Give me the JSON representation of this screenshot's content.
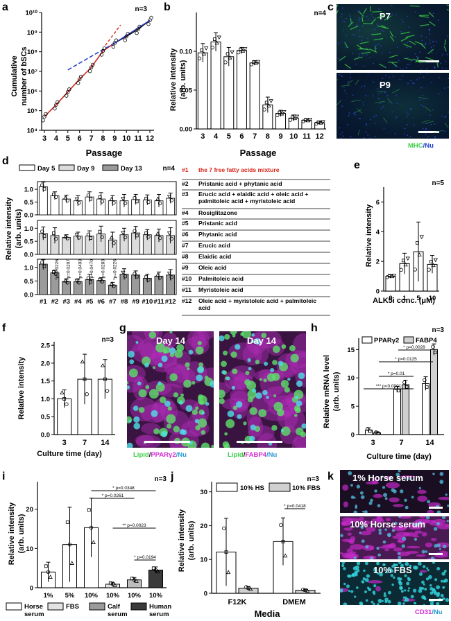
{
  "panel_letters": [
    "a",
    "b",
    "c",
    "d",
    "e",
    "f",
    "g",
    "h",
    "i",
    "j",
    "k"
  ],
  "colors": {
    "red": "#d9261c",
    "blue": "#2a3fd1",
    "magenta": "#d42ad4",
    "cyan": "#33d6e0",
    "green": "#5de06a",
    "gray_light": "#e3e3e3",
    "gray_mid": "#bdbdbd",
    "gray_dark": "#8f8f8f",
    "gray_black": "#3a3a3a"
  },
  "a": {
    "n": "n=3",
    "ylabel": [
      "Cumulative",
      "number of  bSCs"
    ],
    "xlabel": "Passage",
    "xticks": [
      "3",
      "4",
      "5",
      "6",
      "7",
      "8",
      "9",
      "10",
      "11",
      "12"
    ],
    "yticks": [
      "10⁴",
      "10⁵",
      "10⁶",
      "10⁷",
      "10⁸",
      "10⁹",
      "10¹⁰"
    ]
  },
  "b": {
    "n": "n=4",
    "ylabel": [
      "Relative intensity",
      "(arb. units)"
    ],
    "xlabel": "Passage",
    "xticks": [
      "3",
      "4",
      "5",
      "6",
      "7",
      "8",
      "9",
      "10",
      "11",
      "12"
    ],
    "yticks": [
      "0.00",
      "0.05",
      "0.10"
    ]
  },
  "c": {
    "p7": "P7",
    "p9": "P9",
    "legend_a": "MHC",
    "legend_b": "/Nu"
  },
  "d": {
    "legend": [
      "Day 5",
      "Day 9",
      "Day 13"
    ],
    "n": "n=4",
    "ylabel": [
      "Relative intensity",
      "(arb. units)"
    ],
    "yticks": [
      "0.0",
      "0.5",
      "1.0"
    ],
    "xticks": [
      "#1",
      "#2",
      "#3",
      "#4",
      "#5",
      "#6",
      "#7",
      "#8",
      "#9",
      "#10",
      "#11",
      "#12"
    ],
    "pvals": [
      "p=0.0226",
      "p=0.0207",
      "p=0.0403",
      "p=0.0470",
      "p=0.0283",
      "p=0.0226"
    ],
    "compounds": [
      {
        "num": "#1",
        "name": "the 7 free fatty acids mixture"
      },
      {
        "num": "#2",
        "name": "Pristanic acid + phytanic acid"
      },
      {
        "num": "#3",
        "name": "Erucic acid + elaidic acid + oleic acid + palmitoleic acid + myristoleic acid"
      },
      {
        "num": "#4",
        "name": "Rosiglitazone"
      },
      {
        "num": "#5",
        "name": "Pristanic acid"
      },
      {
        "num": "#6",
        "name": "Phytanic acid"
      },
      {
        "num": "#7",
        "name": "Erucic acid"
      },
      {
        "num": "#8",
        "name": "Elaidic acid"
      },
      {
        "num": "#9",
        "name": "Oleic acid"
      },
      {
        "num": "#10",
        "name": "Palmitoleic acid"
      },
      {
        "num": "#11",
        "name": "Myristoleic acid"
      },
      {
        "num": "#12",
        "name": "Oleic acid + myristoleic acid + palmitoleic acid"
      }
    ]
  },
  "e": {
    "n": "n=5",
    "ylabel": "Relative intensity",
    "xlabel": "ALK5i conc. (μM)",
    "xticks": [
      "0",
      "1",
      "5",
      "10"
    ],
    "yticks": [
      "0",
      "2",
      "4",
      "6"
    ]
  },
  "f": {
    "n": "n=3",
    "ylabel": "Relative intensity",
    "xlabel": "Culture time (day)",
    "xticks": [
      "3",
      "7",
      "14"
    ],
    "yticks": [
      "0.0",
      "0.5",
      "1.0",
      "1.5",
      "2.0",
      "2.5"
    ]
  },
  "g": {
    "day_left": "Day 14",
    "day_right": "Day 14",
    "cap_left": [
      "Lipid",
      "/",
      "PPARγ2",
      "/Nu"
    ],
    "cap_right": [
      "Lipid",
      "/",
      "FABP4",
      "/Nu"
    ]
  },
  "h": {
    "n": "n=3",
    "legend": [
      "PPARγ2",
      "FABP4"
    ],
    "ylabel": [
      "Relative mRNA level",
      "(arb. units)"
    ],
    "xlabel": "Culture time (day)",
    "xticks": [
      "3",
      "7",
      "14"
    ],
    "yticks": [
      "0",
      "5",
      "10",
      "15"
    ],
    "pvals": [
      "p=0.0028",
      "p=0.0125",
      "p=0.01",
      "p<0.0001"
    ]
  },
  "i": {
    "n": "n=3",
    "ylabel": [
      "Relative intensity",
      "(arb. units)"
    ],
    "xticks": [
      "1%",
      "5%",
      "10%",
      "10%",
      "10%",
      "10%"
    ],
    "yticks": [
      "0",
      "10",
      "20"
    ],
    "pvals": [
      "p=0.0348",
      "p=0.0261",
      "p=0.0023",
      "p=0.0194"
    ],
    "legend": [
      "Horse serum",
      "FBS",
      "Calf serum",
      "Human serum"
    ]
  },
  "j": {
    "n": "n=3",
    "legend": [
      "10% HS",
      "10% FBS"
    ],
    "ylabel": [
      "Relative intensity",
      "(arb. units)"
    ],
    "xlabel": "Media",
    "xticks": [
      "F12K",
      "DMEM"
    ],
    "yticks": [
      "0",
      "10",
      "20",
      "30"
    ],
    "pval": "p=0.0418"
  },
  "k": {
    "labels": [
      "1% Horse serum",
      "10% Horse serum",
      "10% FBS"
    ],
    "cap_a": "CD31",
    "cap_b": "/Nu"
  },
  "chart_data": [
    {
      "panel": "a",
      "type": "scatter",
      "x": [
        3,
        4,
        5,
        6,
        7,
        8,
        9,
        10,
        11,
        12
      ],
      "y": [
        50000.0,
        200000.0,
        900000.0,
        4000000.0,
        16000000.0,
        110000000.0,
        280000000.0,
        600000000.0,
        1400000000.0,
        4000000000.0
      ],
      "ylim": [
        10000.0,
        10000000000.0
      ],
      "log_y": true
    },
    {
      "panel": "b",
      "type": "bar",
      "categories": [
        "3",
        "4",
        "5",
        "6",
        "7",
        "8",
        "9",
        "10",
        "11",
        "12"
      ],
      "values": [
        0.098,
        0.112,
        0.093,
        0.101,
        0.085,
        0.031,
        0.02,
        0.014,
        0.011,
        0.008
      ],
      "err": [
        0.012,
        0.012,
        0.012,
        0.004,
        0.003,
        0.01,
        0.004,
        0.004,
        0.002,
        0.002
      ],
      "ylim": [
        0,
        0.15
      ]
    },
    {
      "panel": "d",
      "type": "bar",
      "categories": [
        "#1",
        "#2",
        "#3",
        "#4",
        "#5",
        "#6",
        "#7",
        "#8",
        "#9",
        "#10",
        "#11",
        "#12"
      ],
      "series": [
        {
          "name": "Day 5",
          "values": [
            1.1,
            0.75,
            0.62,
            0.55,
            0.7,
            0.62,
            0.55,
            0.55,
            0.6,
            0.58,
            0.55,
            0.65
          ],
          "err": [
            0.2,
            0.15,
            0.15,
            0.2,
            0.2,
            0.25,
            0.2,
            0.25,
            0.2,
            0.2,
            0.25,
            0.2
          ]
        },
        {
          "name": "Day 9",
          "values": [
            0.8,
            0.72,
            0.65,
            0.7,
            0.7,
            0.78,
            0.55,
            0.75,
            0.82,
            0.75,
            0.72,
            0.72
          ],
          "err": [
            0.25,
            0.3,
            0.1,
            0.15,
            0.2,
            0.3,
            0.3,
            0.25,
            0.25,
            0.2,
            0.25,
            0.3
          ]
        },
        {
          "name": "Day 13",
          "values": [
            1.12,
            0.8,
            0.48,
            0.48,
            0.55,
            0.52,
            0.35,
            0.75,
            0.72,
            0.6,
            0.68,
            0.72
          ],
          "err": [
            0.2,
            0.1,
            0.1,
            0.1,
            0.2,
            0.1,
            0.1,
            0.2,
            0.15,
            0.15,
            0.15,
            0.2
          ]
        }
      ],
      "ylim": [
        0,
        1.3
      ]
    },
    {
      "panel": "e",
      "type": "bar",
      "categories": [
        "0",
        "1",
        "5",
        "10"
      ],
      "values": [
        1.0,
        1.85,
        2.65,
        1.8
      ],
      "err": [
        0.1,
        0.7,
        2.0,
        0.6
      ],
      "ylim": [
        0,
        7
      ]
    },
    {
      "panel": "f",
      "type": "bar",
      "categories": [
        "3",
        "7",
        "14"
      ],
      "values": [
        1.0,
        1.55,
        1.55
      ],
      "err": [
        0.25,
        0.7,
        0.55
      ],
      "ylim": [
        0,
        2.6
      ]
    },
    {
      "panel": "h",
      "type": "bar",
      "categories": [
        "3",
        "7",
        "14"
      ],
      "series": [
        {
          "name": "PPARγ2",
          "values": [
            0.8,
            8.0,
            9.0
          ],
          "err": [
            0.4,
            0.5,
            1.2
          ]
        },
        {
          "name": "FABP4",
          "values": [
            0.3,
            8.8,
            15.0
          ],
          "err": [
            0.2,
            0.8,
            1.0
          ]
        }
      ],
      "ylim": [
        0,
        17
      ]
    },
    {
      "panel": "i",
      "type": "bar",
      "categories": [
        "1%",
        "5%",
        "10%",
        "10%",
        "10%",
        "10%"
      ],
      "values": [
        4.0,
        11.0,
        15.3,
        0.9,
        2.0,
        4.5
      ],
      "err": [
        2.5,
        9.5,
        7.5,
        0.5,
        0.6,
        0.8
      ],
      "ylim": [
        0,
        27
      ]
    },
    {
      "panel": "j",
      "type": "bar",
      "categories": [
        "F12K",
        "DMEM"
      ],
      "series": [
        {
          "name": "10% HS",
          "values": [
            12.2,
            15.3
          ],
          "err": [
            10,
            7
          ]
        },
        {
          "name": "10% FBS",
          "values": [
            1.5,
            0.9
          ],
          "err": [
            0.5,
            0.3
          ]
        }
      ],
      "ylim": [
        0,
        33
      ]
    }
  ]
}
